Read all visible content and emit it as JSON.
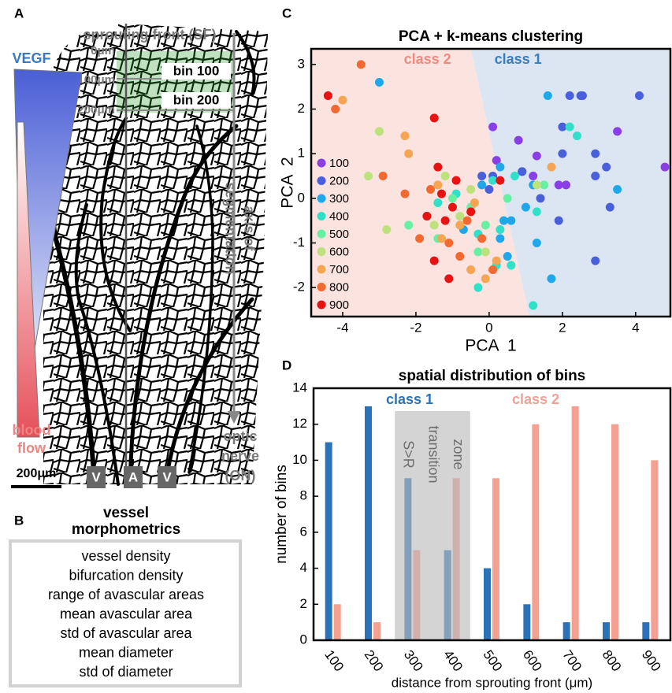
{
  "panel_a": {
    "label": "A",
    "title": "sprouting front (SF)",
    "depth_labels": [
      "0μm",
      "100μm",
      "200μm"
    ],
    "bins": [
      "bin 100",
      "bin 200"
    ],
    "vegf": "VEGF",
    "blood_flow": [
      "blood",
      "flow"
    ],
    "axis_label": [
      "axis of",
      "segmentation"
    ],
    "optic_nerve": [
      "optic",
      "nerve",
      "(ON)"
    ],
    "scale_bar": "200μm",
    "vessel_tags": [
      "V",
      "A",
      "V"
    ]
  },
  "panel_b": {
    "label": "B",
    "title": [
      "vessel",
      "morphometrics"
    ],
    "items": [
      "vessel density",
      "bifurcation density",
      "range of avascular areas",
      "mean avascular area",
      "std of avascular area",
      "mean diameter",
      "std of diameter"
    ]
  },
  "chart_data": [
    {
      "type": "scatter",
      "panel_label": "C",
      "title": "PCA + k-means clustering",
      "x_label": "PCA  1",
      "y_label": "PCA  2",
      "xlim": [
        -4.86,
        4.95
      ],
      "ylim": [
        -2.65,
        3.35
      ],
      "xticks": [
        -4,
        -2,
        0,
        2,
        4
      ],
      "yticks": [
        -2,
        -1,
        0,
        1,
        2,
        3
      ],
      "regions": [
        {
          "name": "class 2",
          "color": "#fbe3e0",
          "label_color": "#f08a80"
        },
        {
          "name": "class 1",
          "color": "#dce6f2",
          "label_color": "#3a7cc0"
        }
      ],
      "decision_boundary": {
        "x": [
          -0.5,
          1.1
        ],
        "y": [
          3.35,
          -2.65
        ]
      },
      "series": [
        {
          "name": "100",
          "color": "#8a3ee6",
          "x": [
            0.1,
            0.8,
            1.3,
            0.9,
            0.2,
            1.9,
            2.1,
            3.5,
            4.8,
            1.2
          ],
          "values": [
            1.6,
            1.3,
            0.95,
            0.6,
            0.85,
            0.3,
            0.3,
            1.5,
            0.7,
            0.5
          ]
        },
        {
          "name": "200",
          "color": "#4a5fdb",
          "x": [
            2.2,
            2.5,
            2.55,
            4.1,
            2.0,
            2.0,
            2.9,
            3.2,
            2.9,
            2.9,
            0.9,
            -0.2,
            0.1,
            3.3,
            1.9,
            0.0,
            1.4
          ],
          "values": [
            2.3,
            2.3,
            2.3,
            2.3,
            1.6,
            1.0,
            1.0,
            0.7,
            0.5,
            -1.4,
            0.6,
            0.5,
            0.5,
            -0.2,
            -0.5,
            0.2,
            0.0
          ]
        },
        {
          "name": "300",
          "color": "#1ea8ea",
          "x": [
            -3.0,
            1.6,
            0.3,
            -0.2,
            1.2,
            1.0,
            1.3,
            1.7,
            0.6,
            -0.7,
            0.3,
            0.5,
            3.5,
            0.4
          ],
          "values": [
            2.6,
            2.3,
            0.7,
            0.3,
            0.3,
            -0.2,
            -1.0,
            -1.8,
            -0.5,
            -0.7,
            -0.9,
            -1.3,
            0.2,
            -0.5
          ]
        },
        {
          "name": "400",
          "color": "#30e0c8",
          "x": [
            2.2,
            2.4,
            0.7,
            1.3,
            0.1,
            -0.3,
            0.6,
            0.2,
            -0.3,
            1.2,
            0.3,
            -0.9,
            -1.4
          ],
          "values": [
            1.6,
            1.4,
            0.5,
            -0.3,
            0.4,
            -0.8,
            -1.5,
            -1.5,
            -2.0,
            -2.4,
            -0.7,
            0.1,
            -0.1
          ]
        },
        {
          "name": "500",
          "color": "#66f0a2",
          "x": [
            -2.2,
            -1.7,
            -1.4,
            -0.5,
            0.5,
            -1.0,
            -0.3,
            1.5,
            -0.1
          ],
          "values": [
            -0.6,
            -0.4,
            -0.9,
            -0.2,
            0.0,
            0.0,
            -1.2,
            0.3,
            -0.6
          ]
        },
        {
          "name": "600",
          "color": "#bde27c",
          "x": [
            -3.0,
            -3.3,
            -2.8,
            -1.2,
            -0.5,
            -0.8,
            1.3,
            -1.5,
            -0.1
          ],
          "values": [
            1.5,
            0.5,
            -0.7,
            0.5,
            0.2,
            -0.4,
            0.3,
            -0.6,
            -1.2
          ]
        },
        {
          "name": "700",
          "color": "#f6a552",
          "x": [
            -4.0,
            -2.3,
            -2.2,
            -1.4,
            -0.8,
            -0.4,
            -0.5,
            0.2,
            -0.1,
            1.7,
            -1.3
          ],
          "values": [
            2.2,
            1.4,
            1.0,
            0.3,
            -0.6,
            -0.1,
            -1.6,
            -1.4,
            -1.8,
            0.7,
            -0.9
          ]
        },
        {
          "name": "800",
          "color": "#f26a30",
          "x": [
            -3.5,
            -4.2,
            -2.9,
            -2.3,
            -1.6,
            -1.9,
            -1.1,
            -0.2,
            -0.6,
            0.1,
            -0.8
          ],
          "values": [
            3.0,
            2.0,
            0.5,
            0.1,
            0.2,
            -0.9,
            -1.0,
            -0.9,
            -0.5,
            -1.6,
            -1.3
          ]
        },
        {
          "name": "900",
          "color": "#e81212",
          "x": [
            -4.4,
            -1.5,
            -1.4,
            -0.9,
            -1.3,
            -1.7,
            -1.2,
            -0.5,
            0.3,
            -1.5,
            -1.1,
            -1.0
          ],
          "values": [
            2.3,
            1.8,
            0.7,
            0.4,
            0.1,
            -0.4,
            -0.5,
            -0.3,
            0.4,
            -1.4,
            -1.8,
            -0.2
          ]
        }
      ]
    },
    {
      "type": "bar",
      "panel_label": "D",
      "title": "spatial distribution of bins",
      "x_label": "distance from sprouting front (μm)",
      "y_label": "number of bins",
      "categories": [
        "100",
        "200",
        "300",
        "400",
        "500",
        "600",
        "700",
        "800",
        "900"
      ],
      "ylim": [
        0,
        14
      ],
      "yticks": [
        0,
        2,
        4,
        6,
        8,
        10,
        12,
        14
      ],
      "series": [
        {
          "name": "class 1",
          "color": "#2a73b8",
          "values": [
            11,
            13,
            9,
            5,
            4,
            2,
            1,
            1,
            1
          ]
        },
        {
          "name": "class 2",
          "color": "#f4a093",
          "values": [
            2,
            1,
            5,
            9,
            9,
            12,
            13,
            12,
            10
          ]
        }
      ],
      "transition_zone": {
        "categories": [
          "300",
          "400"
        ],
        "labels": [
          "S>R",
          "transition",
          "zone"
        ],
        "color": "#b9b9bb"
      }
    }
  ]
}
